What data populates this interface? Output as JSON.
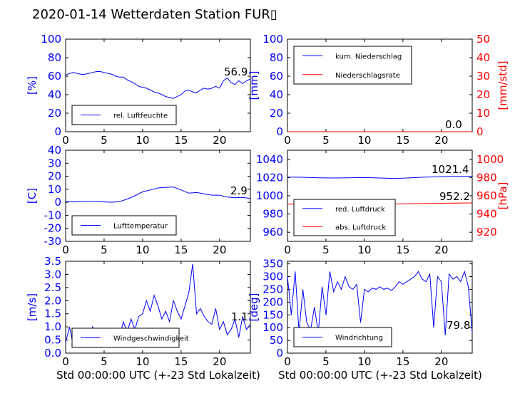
{
  "title": "2020-01-14 Wetterdaten Station FUR▯",
  "xlabel": "Std 00:00:00 UTC (+-23 Std Lokalzeit)",
  "colors": {
    "left_axis": "#0000ff",
    "right_axis": "#ff0000",
    "series_blue": "#0000ff",
    "series_red": "#ff0000",
    "series_light": "#8080ff"
  },
  "chart_data": [
    {
      "id": "humidity",
      "type": "line",
      "ylabel": "[%]",
      "xlim": [
        0,
        24
      ],
      "ylim": [
        0,
        100
      ],
      "x_ticks": [
        0,
        5,
        10,
        15,
        20
      ],
      "y_ticks": [
        0,
        20,
        40,
        60,
        80,
        100
      ],
      "legend": [
        "rel. Luftfeuchte"
      ],
      "legend_position": "lower-left",
      "last_value": "56.9",
      "series": [
        {
          "name": "rel. Luftfeuchte",
          "color": "#0000ff",
          "x": [
            0,
            0.5,
            1,
            1.5,
            2,
            2.5,
            3,
            3.5,
            4,
            4.5,
            5,
            5.5,
            6,
            6.5,
            7,
            7.5,
            8,
            8.5,
            9,
            9.5,
            10,
            10.5,
            11,
            11.5,
            12,
            12.5,
            13,
            13.5,
            14,
            14.5,
            15,
            15.5,
            16,
            16.5,
            17,
            17.5,
            18,
            18.5,
            19,
            19.5,
            20,
            20.5,
            21,
            21.5,
            22,
            22.5,
            23,
            23.5,
            24
          ],
          "values": [
            61,
            63,
            64,
            63,
            62,
            62,
            63,
            64,
            65,
            65,
            64,
            63,
            62,
            60,
            59,
            59,
            56,
            54,
            52,
            49,
            48,
            47,
            45,
            43,
            42,
            40,
            38,
            37,
            36,
            38,
            40,
            44,
            45,
            43,
            42,
            45,
            47,
            46,
            47,
            49,
            47,
            55,
            58,
            53,
            51,
            55,
            52,
            55,
            56.9
          ]
        }
      ]
    },
    {
      "id": "precip",
      "type": "line",
      "ylabel": "[mm]",
      "ylabel_right": "[mm/std]",
      "xlim": [
        0,
        24
      ],
      "ylim": [
        0,
        100
      ],
      "ylim_right": [
        0,
        50
      ],
      "x_ticks": [
        0,
        5,
        10,
        15,
        20
      ],
      "y_ticks": [
        0,
        20,
        40,
        60,
        80,
        100
      ],
      "y_ticks_right": [
        0,
        10,
        20,
        30,
        40,
        50
      ],
      "legend": [
        "kum. Niederschlag",
        "Niederschlagsrate"
      ],
      "legend_position": "top-left",
      "last_value": "0.0",
      "series": [
        {
          "name": "kum. Niederschlag",
          "color": "#0000ff",
          "axis": "left",
          "x": [
            0,
            24
          ],
          "values": [
            0,
            0
          ]
        },
        {
          "name": "Niederschlagsrate",
          "color": "#ff0000",
          "axis": "right",
          "x": [
            0,
            24
          ],
          "values": [
            0,
            0
          ]
        }
      ]
    },
    {
      "id": "temperature",
      "type": "line",
      "ylabel": "[C]",
      "xlim": [
        0,
        24
      ],
      "ylim": [
        -30,
        40
      ],
      "x_ticks": [
        0,
        5,
        10,
        15,
        20
      ],
      "y_ticks": [
        -30,
        -20,
        -10,
        0,
        10,
        20,
        30,
        40
      ],
      "legend": [
        "Lufttemperatur"
      ],
      "legend_position": "lower-left",
      "last_value": "2.9",
      "series": [
        {
          "name": "Lufttemperatur",
          "color": "#0000ff",
          "x": [
            0,
            1,
            2,
            3,
            4,
            5,
            6,
            7,
            8,
            9,
            10,
            11,
            12,
            13,
            14,
            15,
            16,
            17,
            18,
            19,
            20,
            21,
            22,
            23,
            24
          ],
          "values": [
            0.5,
            0.3,
            0.5,
            0.8,
            0.6,
            0.3,
            0.1,
            0.5,
            2.5,
            5,
            8,
            9.5,
            11,
            11.5,
            11.8,
            9.5,
            7,
            7.5,
            6.5,
            5.5,
            5.5,
            4,
            3.5,
            3.8,
            2.9
          ]
        }
      ]
    },
    {
      "id": "pressure",
      "type": "line",
      "ylabel_right": "[hPa]",
      "xlim": [
        0,
        24
      ],
      "ylim": [
        950,
        1050
      ],
      "ylim_right": [
        910,
        1010
      ],
      "x_ticks": [
        0,
        5,
        10,
        15,
        20
      ],
      "y_ticks": [
        960,
        980,
        1000,
        1020,
        1040
      ],
      "y_ticks_right": [
        920,
        940,
        960,
        980,
        1000
      ],
      "legend": [
        "red. Luftdruck",
        "abs. Luftdruck"
      ],
      "legend_position": "lower-left",
      "last_values": [
        "1021.4",
        "952.2"
      ],
      "series": [
        {
          "name": "red. Luftdruck",
          "color": "#0000ff",
          "axis": "left",
          "x": [
            0,
            2,
            4,
            6,
            8,
            10,
            12,
            14,
            16,
            18,
            20,
            22,
            24
          ],
          "values": [
            1020.5,
            1020.3,
            1019.8,
            1019.5,
            1019.7,
            1020,
            1019.5,
            1019,
            1019.8,
            1020.5,
            1021,
            1021.3,
            1021.4
          ]
        },
        {
          "name": "abs. Luftdruck",
          "color": "#ff0000",
          "axis": "right",
          "x": [
            0,
            4,
            8,
            12,
            16,
            20,
            24
          ],
          "values": [
            950.8,
            950.5,
            950.6,
            950.8,
            951.3,
            951.8,
            952.2
          ]
        }
      ]
    },
    {
      "id": "wind",
      "type": "line",
      "ylabel": "[m/s]",
      "xlim": [
        0,
        24
      ],
      "ylim": [
        0,
        3.5
      ],
      "x_ticks": [
        0,
        5,
        10,
        15,
        20
      ],
      "y_ticks": [
        0,
        0.5,
        1.0,
        1.5,
        2.0,
        2.5,
        3.0,
        3.5
      ],
      "legend": [
        "Windgeschwindigkeit"
      ],
      "legend_position": "lower-left",
      "last_value": "1.1",
      "series": [
        {
          "name": "Windgeschwindigkeit",
          "color": "#0000ff",
          "x": [
            0,
            0.5,
            1,
            1.5,
            2,
            2.5,
            3,
            3.5,
            4,
            4.5,
            5,
            5.5,
            6,
            6.5,
            7,
            7.5,
            8,
            8.5,
            9,
            9.5,
            10,
            10.5,
            11,
            11.5,
            12,
            12.5,
            13,
            13.5,
            14,
            14.5,
            15,
            15.5,
            16,
            16.5,
            17,
            17.5,
            18,
            18.5,
            19,
            19.5,
            20,
            20.5,
            21,
            21.5,
            22,
            22.5,
            23,
            23.5,
            24
          ],
          "values": [
            0.4,
            1.0,
            0.3,
            0.8,
            0.4,
            0.9,
            0.5,
            1.0,
            0.6,
            0.9,
            0.4,
            0.8,
            0.5,
            0.9,
            0.6,
            1.2,
            0.8,
            1.3,
            0.9,
            1.4,
            1.5,
            2.0,
            1.6,
            2.2,
            1.8,
            1.3,
            1.6,
            1.2,
            2.0,
            1.6,
            1.3,
            1.8,
            2.3,
            3.4,
            1.5,
            1.7,
            1.4,
            1.2,
            1.1,
            1.7,
            0.9,
            1.2,
            0.7,
            0.9,
            1.3,
            0.6,
            1.4,
            0.9,
            1.1
          ]
        }
      ]
    },
    {
      "id": "wind_direction",
      "type": "line",
      "ylabel": "[deg]",
      "xlim": [
        0,
        24
      ],
      "ylim": [
        0,
        360
      ],
      "x_ticks": [
        0,
        5,
        10,
        15,
        20
      ],
      "y_ticks": [
        0,
        50,
        100,
        150,
        200,
        250,
        300,
        350
      ],
      "legend": [
        "Windrichtung"
      ],
      "legend_position": "lower-left",
      "last_value": "79.8",
      "series": [
        {
          "name": "Windrichtung",
          "color": "#0000ff",
          "x": [
            0,
            0.5,
            1,
            1.5,
            2,
            2.5,
            3,
            3.5,
            4,
            4.5,
            5,
            5.5,
            6,
            6.5,
            7,
            7.5,
            8,
            8.5,
            9,
            9.5,
            10,
            10.5,
            11,
            11.5,
            12,
            12.5,
            13,
            13.5,
            14,
            14.5,
            15,
            15.5,
            16,
            16.5,
            17,
            17.5,
            18,
            18.5,
            19,
            19.5,
            20,
            20.5,
            21,
            21.5,
            22,
            22.5,
            23,
            23.5,
            24
          ],
          "values": [
            300,
            150,
            320,
            80,
            250,
            120,
            90,
            180,
            80,
            260,
            150,
            320,
            240,
            280,
            250,
            300,
            260,
            250,
            270,
            120,
            250,
            240,
            255,
            250,
            260,
            250,
            255,
            245,
            260,
            280,
            270,
            280,
            290,
            300,
            320,
            290,
            280,
            310,
            100,
            300,
            280,
            70,
            310,
            290,
            300,
            280,
            320,
            260,
            79.8
          ]
        }
      ]
    }
  ]
}
